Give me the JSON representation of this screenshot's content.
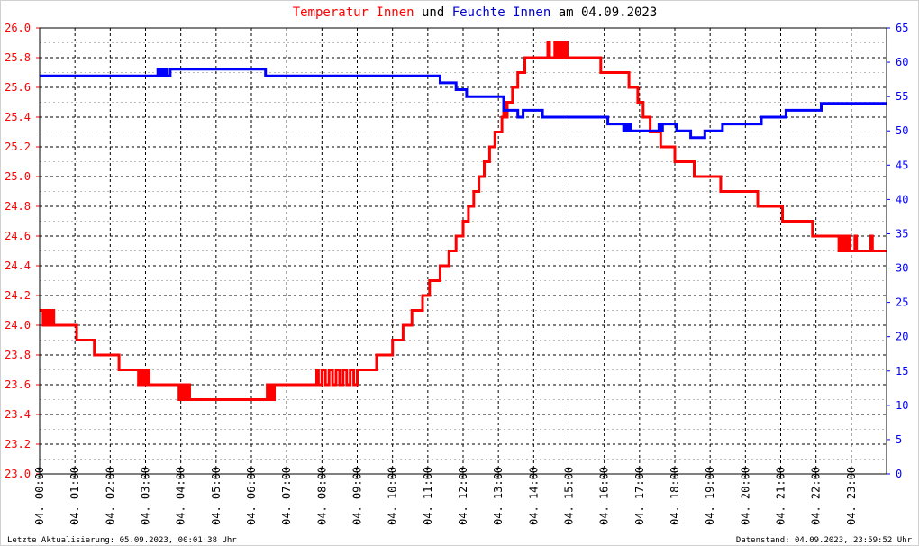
{
  "chart_data": {
    "type": "line",
    "title_parts": [
      {
        "text": "Temperatur Innen",
        "color": "#ff0000"
      },
      {
        "text": " und ",
        "color": "#000000"
      },
      {
        "text": "Feuchte Innen",
        "color": "#0000cc"
      },
      {
        "text": " am 04.09.2023",
        "color": "#000000"
      }
    ],
    "x_unit": "hour",
    "xlim": [
      0,
      24
    ],
    "x_ticks": [
      {
        "x": 0,
        "label": "04. 00:00"
      },
      {
        "x": 1,
        "label": "04. 01:00"
      },
      {
        "x": 2,
        "label": "04. 02:00"
      },
      {
        "x": 3,
        "label": "04. 03:00"
      },
      {
        "x": 4,
        "label": "04. 04:00"
      },
      {
        "x": 5,
        "label": "04. 05:00"
      },
      {
        "x": 6,
        "label": "04. 06:00"
      },
      {
        "x": 7,
        "label": "04. 07:00"
      },
      {
        "x": 8,
        "label": "04. 08:00"
      },
      {
        "x": 9,
        "label": "04. 09:00"
      },
      {
        "x": 10,
        "label": "04. 10:00"
      },
      {
        "x": 11,
        "label": "04. 11:00"
      },
      {
        "x": 12,
        "label": "04. 12:00"
      },
      {
        "x": 13,
        "label": "04. 13:00"
      },
      {
        "x": 14,
        "label": "04. 14:00"
      },
      {
        "x": 15,
        "label": "04. 15:00"
      },
      {
        "x": 16,
        "label": "04. 16:00"
      },
      {
        "x": 17,
        "label": "04. 17:00"
      },
      {
        "x": 18,
        "label": "04. 18:00"
      },
      {
        "x": 19,
        "label": "04. 19:00"
      },
      {
        "x": 20,
        "label": "04. 20:00"
      },
      {
        "x": 21,
        "label": "04. 21:00"
      },
      {
        "x": 22,
        "label": "04. 22:00"
      },
      {
        "x": 23,
        "label": "04. 23:00"
      }
    ],
    "y_left": {
      "lim": [
        23.0,
        26.0
      ],
      "ticks": [
        "23.0",
        "23.2",
        "23.4",
        "23.6",
        "23.8",
        "24.0",
        "24.2",
        "24.4",
        "24.6",
        "24.8",
        "25.0",
        "25.2",
        "25.4",
        "25.6",
        "25.8",
        "26.0"
      ],
      "color": "#ff0000"
    },
    "y_right": {
      "lim": [
        0,
        65
      ],
      "ticks": [
        "0",
        "5",
        "10",
        "15",
        "20",
        "25",
        "30",
        "35",
        "40",
        "45",
        "50",
        "55",
        "60",
        "65"
      ],
      "color": "#0000ff"
    },
    "grid": true,
    "series": [
      {
        "name": "Temperatur Innen",
        "axis": "left",
        "color": "#ff0000",
        "points": [
          [
            0.0,
            24.1
          ],
          [
            0.1,
            24.0
          ],
          [
            0.15,
            24.1
          ],
          [
            0.2,
            24.0
          ],
          [
            0.25,
            24.1
          ],
          [
            0.3,
            24.0
          ],
          [
            0.35,
            24.1
          ],
          [
            0.4,
            24.0
          ],
          [
            1.0,
            24.0
          ],
          [
            1.05,
            23.9
          ],
          [
            1.5,
            23.9
          ],
          [
            1.55,
            23.8
          ],
          [
            2.2,
            23.8
          ],
          [
            2.25,
            23.7
          ],
          [
            2.75,
            23.7
          ],
          [
            2.8,
            23.6
          ],
          [
            2.85,
            23.7
          ],
          [
            2.9,
            23.6
          ],
          [
            2.95,
            23.7
          ],
          [
            3.0,
            23.6
          ],
          [
            3.05,
            23.7
          ],
          [
            3.1,
            23.6
          ],
          [
            3.9,
            23.6
          ],
          [
            3.95,
            23.5
          ],
          [
            4.0,
            23.6
          ],
          [
            4.05,
            23.5
          ],
          [
            4.1,
            23.6
          ],
          [
            4.15,
            23.5
          ],
          [
            4.2,
            23.6
          ],
          [
            4.25,
            23.5
          ],
          [
            6.4,
            23.5
          ],
          [
            6.45,
            23.6
          ],
          [
            6.5,
            23.5
          ],
          [
            6.55,
            23.6
          ],
          [
            6.6,
            23.5
          ],
          [
            6.65,
            23.6
          ],
          [
            7.8,
            23.6
          ],
          [
            7.85,
            23.7
          ],
          [
            7.9,
            23.6
          ],
          [
            8.0,
            23.7
          ],
          [
            8.1,
            23.6
          ],
          [
            8.2,
            23.7
          ],
          [
            8.3,
            23.6
          ],
          [
            8.4,
            23.7
          ],
          [
            8.5,
            23.6
          ],
          [
            8.6,
            23.7
          ],
          [
            8.7,
            23.6
          ],
          [
            8.8,
            23.7
          ],
          [
            8.9,
            23.6
          ],
          [
            9.0,
            23.7
          ],
          [
            9.5,
            23.7
          ],
          [
            9.55,
            23.8
          ],
          [
            9.95,
            23.8
          ],
          [
            10.0,
            23.9
          ],
          [
            10.25,
            23.9
          ],
          [
            10.3,
            24.0
          ],
          [
            10.5,
            24.0
          ],
          [
            10.55,
            24.1
          ],
          [
            10.8,
            24.1
          ],
          [
            10.85,
            24.2
          ],
          [
            11.0,
            24.2
          ],
          [
            11.05,
            24.3
          ],
          [
            11.3,
            24.3
          ],
          [
            11.35,
            24.4
          ],
          [
            11.55,
            24.4
          ],
          [
            11.6,
            24.5
          ],
          [
            11.75,
            24.5
          ],
          [
            11.8,
            24.6
          ],
          [
            11.95,
            24.6
          ],
          [
            12.0,
            24.7
          ],
          [
            12.1,
            24.7
          ],
          [
            12.15,
            24.8
          ],
          [
            12.25,
            24.8
          ],
          [
            12.3,
            24.9
          ],
          [
            12.4,
            24.9
          ],
          [
            12.45,
            25.0
          ],
          [
            12.55,
            25.0
          ],
          [
            12.6,
            25.1
          ],
          [
            12.7,
            25.1
          ],
          [
            12.75,
            25.2
          ],
          [
            12.85,
            25.2
          ],
          [
            12.9,
            25.3
          ],
          [
            13.05,
            25.3
          ],
          [
            13.1,
            25.4
          ],
          [
            13.15,
            25.5
          ],
          [
            13.2,
            25.4
          ],
          [
            13.25,
            25.5
          ],
          [
            13.35,
            25.5
          ],
          [
            13.4,
            25.6
          ],
          [
            13.5,
            25.6
          ],
          [
            13.55,
            25.7
          ],
          [
            13.7,
            25.7
          ],
          [
            13.75,
            25.8
          ],
          [
            14.35,
            25.8
          ],
          [
            14.4,
            25.9
          ],
          [
            14.45,
            25.8
          ],
          [
            14.55,
            25.8
          ],
          [
            14.6,
            25.9
          ],
          [
            14.65,
            25.8
          ],
          [
            14.7,
            25.9
          ],
          [
            14.75,
            25.8
          ],
          [
            14.8,
            25.9
          ],
          [
            14.85,
            25.8
          ],
          [
            14.9,
            25.9
          ],
          [
            14.95,
            25.8
          ],
          [
            15.85,
            25.8
          ],
          [
            15.9,
            25.7
          ],
          [
            16.65,
            25.7
          ],
          [
            16.7,
            25.6
          ],
          [
            16.9,
            25.6
          ],
          [
            16.95,
            25.5
          ],
          [
            17.05,
            25.5
          ],
          [
            17.1,
            25.4
          ],
          [
            17.25,
            25.4
          ],
          [
            17.3,
            25.3
          ],
          [
            17.55,
            25.3
          ],
          [
            17.6,
            25.2
          ],
          [
            17.95,
            25.2
          ],
          [
            18.0,
            25.1
          ],
          [
            18.5,
            25.1
          ],
          [
            18.55,
            25.0
          ],
          [
            19.25,
            25.0
          ],
          [
            19.3,
            24.9
          ],
          [
            20.3,
            24.9
          ],
          [
            20.35,
            24.8
          ],
          [
            21.0,
            24.8
          ],
          [
            21.05,
            24.7
          ],
          [
            21.85,
            24.7
          ],
          [
            21.9,
            24.6
          ],
          [
            22.6,
            24.6
          ],
          [
            22.65,
            24.5
          ],
          [
            22.7,
            24.6
          ],
          [
            22.75,
            24.5
          ],
          [
            22.8,
            24.6
          ],
          [
            22.85,
            24.5
          ],
          [
            22.9,
            24.6
          ],
          [
            22.95,
            24.5
          ],
          [
            23.05,
            24.5
          ],
          [
            23.1,
            24.6
          ],
          [
            23.15,
            24.5
          ],
          [
            23.5,
            24.5
          ],
          [
            23.55,
            24.6
          ],
          [
            23.6,
            24.5
          ],
          [
            24.0,
            24.5
          ]
        ]
      },
      {
        "name": "Feuchte Innen",
        "axis": "right",
        "color": "#0000ff",
        "points": [
          [
            0.0,
            58
          ],
          [
            3.3,
            58
          ],
          [
            3.35,
            59
          ],
          [
            3.4,
            58
          ],
          [
            3.45,
            59
          ],
          [
            3.5,
            58
          ],
          [
            3.55,
            59
          ],
          [
            3.6,
            58
          ],
          [
            3.7,
            59
          ],
          [
            6.35,
            59
          ],
          [
            6.4,
            58
          ],
          [
            11.3,
            58
          ],
          [
            11.35,
            57
          ],
          [
            11.75,
            57
          ],
          [
            11.8,
            56
          ],
          [
            12.05,
            56
          ],
          [
            12.1,
            55
          ],
          [
            13.1,
            55
          ],
          [
            13.15,
            53
          ],
          [
            13.5,
            53
          ],
          [
            13.55,
            52
          ],
          [
            13.65,
            52
          ],
          [
            13.7,
            53
          ],
          [
            14.2,
            53
          ],
          [
            14.25,
            52
          ],
          [
            16.05,
            52
          ],
          [
            16.1,
            51
          ],
          [
            16.5,
            51
          ],
          [
            16.55,
            50
          ],
          [
            16.6,
            51
          ],
          [
            16.65,
            50
          ],
          [
            16.7,
            51
          ],
          [
            16.75,
            50
          ],
          [
            17.5,
            50
          ],
          [
            17.55,
            51
          ],
          [
            17.6,
            50
          ],
          [
            17.65,
            51
          ],
          [
            18.0,
            51
          ],
          [
            18.05,
            50
          ],
          [
            18.4,
            50
          ],
          [
            18.45,
            49
          ],
          [
            18.8,
            49
          ],
          [
            18.85,
            50
          ],
          [
            19.3,
            50
          ],
          [
            19.35,
            51
          ],
          [
            20.4,
            51
          ],
          [
            20.45,
            52
          ],
          [
            21.1,
            52
          ],
          [
            21.15,
            53
          ],
          [
            22.1,
            53
          ],
          [
            22.15,
            54
          ],
          [
            24.0,
            54
          ]
        ]
      }
    ],
    "footer_left": "Letzte Aktualisierung: 05.09.2023, 00:01:38 Uhr",
    "footer_right": "Datenstand: 04.09.2023, 23:59:52 Uhr"
  }
}
